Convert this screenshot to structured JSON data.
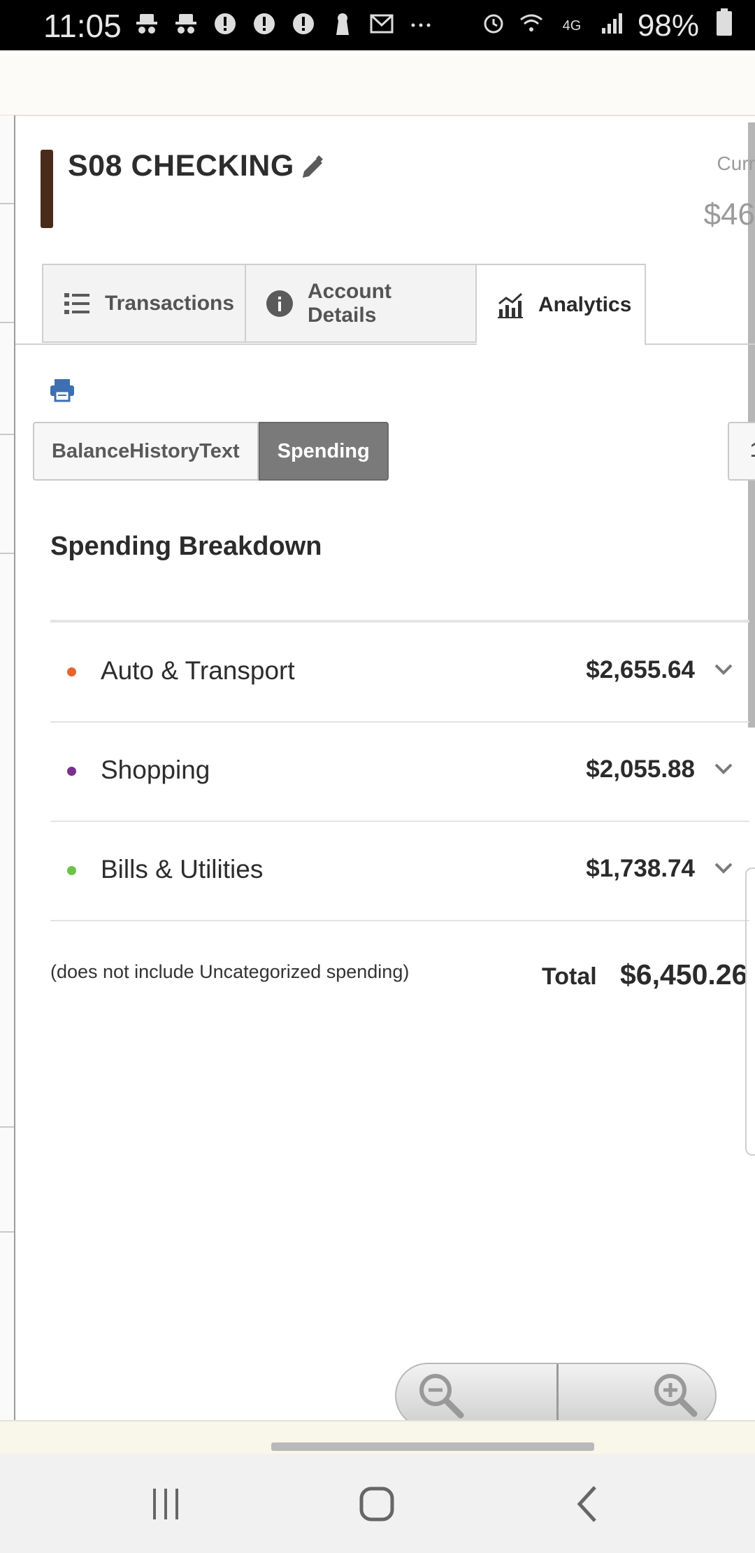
{
  "status_bar": {
    "time": "11:05",
    "battery": "98%",
    "left_icons": [
      "incognito-icon",
      "incognito-icon",
      "alert-icon",
      "alert-icon",
      "alert-icon",
      "keyhole-icon",
      "gmail-icon",
      "more-icon"
    ],
    "right_icons": [
      "alarm-icon",
      "wifi-icon",
      "lte-icon",
      "signal-icon",
      "battery-icon"
    ]
  },
  "account": {
    "title": "S08 CHECKING",
    "accent_color": "#4a2a1a",
    "current_label": "Curr",
    "current_value": "$46"
  },
  "tabs": [
    {
      "label": "Transactions",
      "icon": "list-icon",
      "active": false
    },
    {
      "label": "Account Details",
      "icon": "info-icon",
      "active": false
    },
    {
      "label": "Analytics",
      "icon": "analytics-icon",
      "active": true
    }
  ],
  "toggle": {
    "options": [
      "BalanceHistoryText",
      "Spending"
    ],
    "selected": "Spending",
    "right_stub": "1"
  },
  "section": {
    "title": "Spending Breakdown"
  },
  "categories": [
    {
      "name": "Auto & Transport",
      "amount": "$2,655.64",
      "dot_color": "#e8642c"
    },
    {
      "name": "Shopping",
      "amount": "$2,055.88",
      "dot_color": "#7b2f8f"
    },
    {
      "name": "Bills & Utilities",
      "amount": "$1,738.74",
      "dot_color": "#6cc24a"
    }
  ],
  "footer": {
    "note": "(does not include Uncategorized spending)",
    "total_label": "Total",
    "total_value": "$6,450.26"
  }
}
